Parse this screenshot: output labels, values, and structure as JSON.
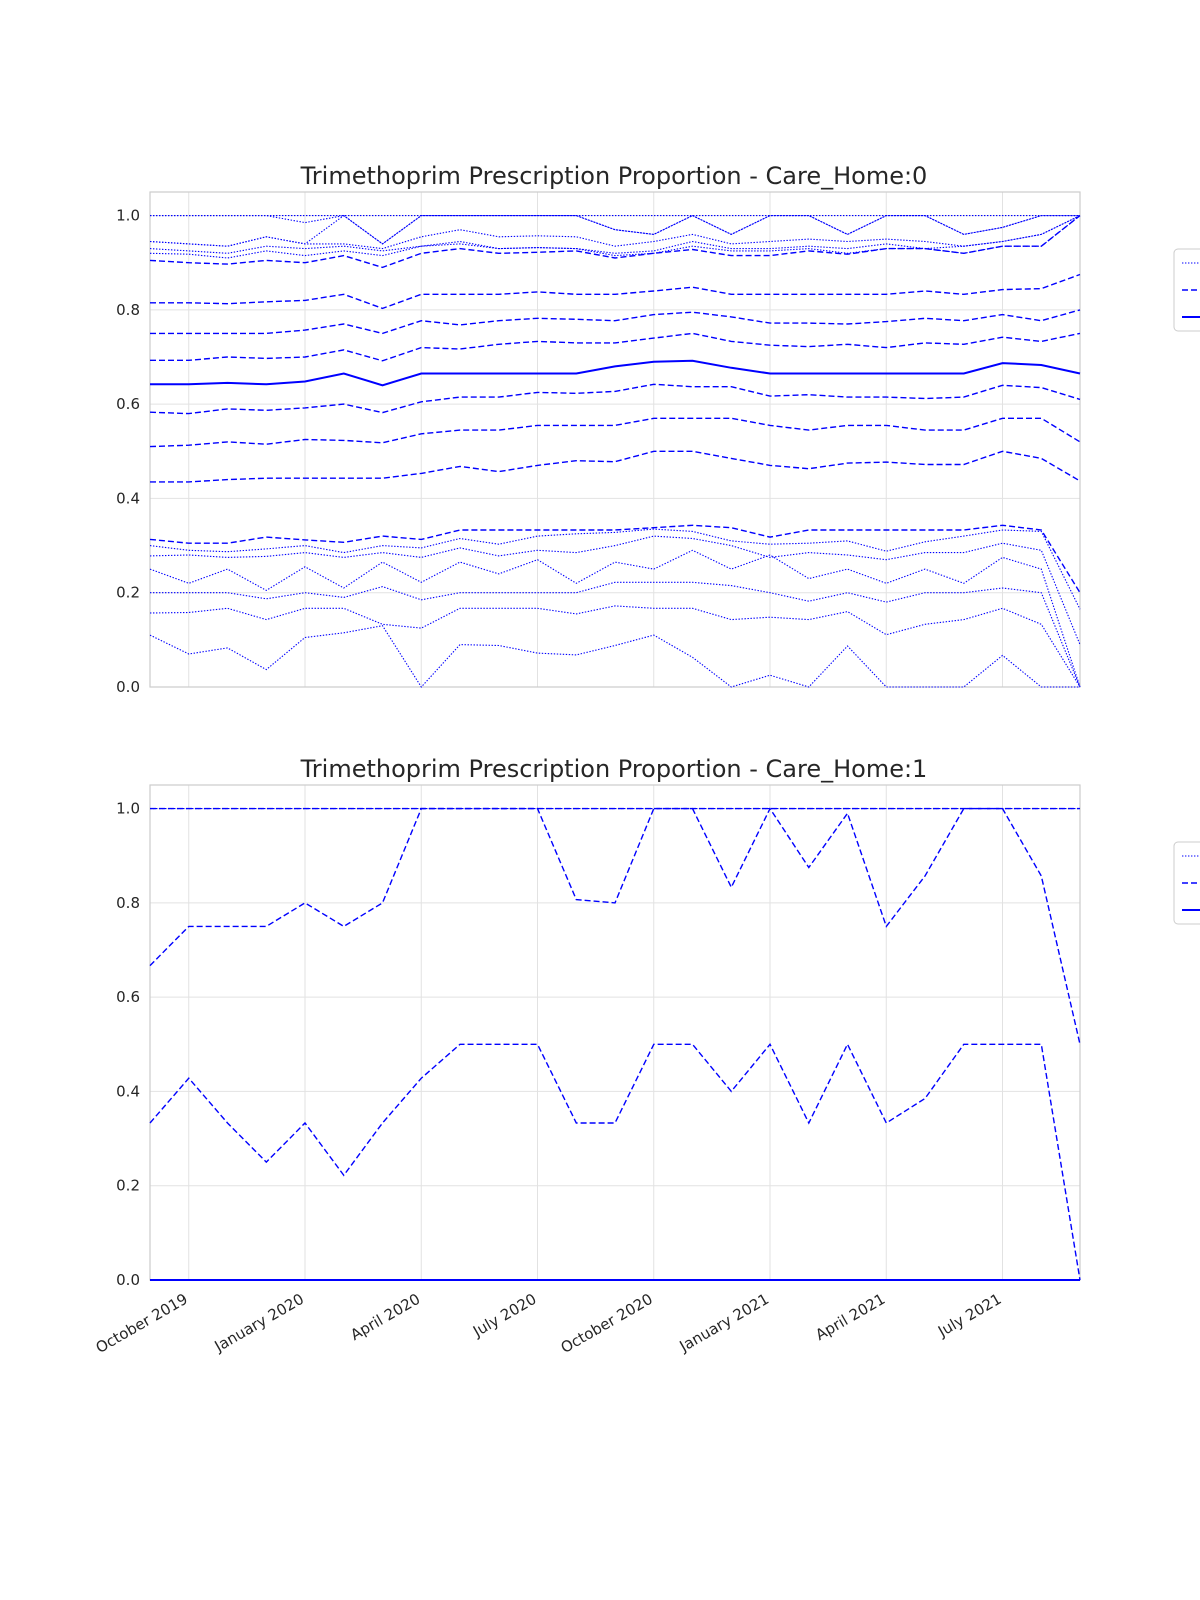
{
  "figure": {
    "x_ticks": [
      "October 2019",
      "January 2020",
      "April 2020",
      "July 2020",
      "October 2020",
      "January 2021",
      "April 2021",
      "July 2021"
    ],
    "line_color": "#0000ff"
  },
  "chart_data": [
    {
      "type": "line",
      "title": "Trimethoprim Prescription Proportion - Care_Home:0",
      "xlabel": "",
      "ylabel": "",
      "x": [
        "2019-09",
        "2019-10",
        "2019-11",
        "2019-12",
        "2020-01",
        "2020-02",
        "2020-03",
        "2020-04",
        "2020-05",
        "2020-06",
        "2020-07",
        "2020-08",
        "2020-09",
        "2020-10",
        "2020-11",
        "2020-12",
        "2021-01",
        "2021-02",
        "2021-03",
        "2021-04",
        "2021-05",
        "2021-06",
        "2021-07",
        "2021-08",
        "2021-09"
      ],
      "ylim": [
        0,
        1.05
      ],
      "yticks": [
        "0.0",
        "0.2",
        "0.4",
        "0.6",
        "0.8",
        "1.0"
      ],
      "show_xtick_labels": false,
      "grid": true,
      "legend": "right (entries cropped)",
      "series": [
        {
          "style": "dotted",
          "values": [
            1.0,
            1.0,
            1.0,
            1.0,
            1.0,
            1.0,
            1.0,
            1.0,
            1.0,
            1.0,
            1.0,
            1.0,
            1.0,
            1.0,
            1.0,
            1.0,
            1.0,
            1.0,
            1.0,
            1.0,
            1.0,
            1.0,
            1.0,
            1.0,
            1.0
          ]
        },
        {
          "style": "dotted",
          "values": [
            1.0,
            1.0,
            1.0,
            1.0,
            0.985,
            1.0,
            0.94,
            1.0,
            1.0,
            1.0,
            1.0,
            1.0,
            0.97,
            0.96,
            1.0,
            0.96,
            1.0,
            1.0,
            0.96,
            1.0,
            1.0,
            0.96,
            0.975,
            1.0,
            1.0
          ]
        },
        {
          "style": "dotted",
          "values": [
            0.945,
            0.94,
            0.935,
            0.955,
            0.94,
            1.0,
            0.94,
            1.0,
            1.0,
            1.0,
            1.0,
            1.0,
            0.97,
            0.96,
            1.0,
            0.96,
            1.0,
            1.0,
            0.96,
            1.0,
            1.0,
            0.96,
            0.975,
            1.0,
            1.0
          ]
        },
        {
          "style": "dotted",
          "values": [
            0.945,
            0.94,
            0.935,
            0.955,
            0.94,
            0.94,
            0.93,
            0.955,
            0.97,
            0.955,
            0.957,
            0.955,
            0.935,
            0.945,
            0.96,
            0.94,
            0.945,
            0.95,
            0.945,
            0.95,
            0.945,
            0.935,
            0.945,
            0.96,
            1.0
          ]
        },
        {
          "style": "dotted",
          "values": [
            0.93,
            0.925,
            0.92,
            0.935,
            0.93,
            0.935,
            0.925,
            0.935,
            0.945,
            0.93,
            0.932,
            0.93,
            0.92,
            0.925,
            0.945,
            0.93,
            0.93,
            0.935,
            0.93,
            0.94,
            0.93,
            0.935,
            0.945,
            0.96,
            1.0
          ]
        },
        {
          "style": "dotted",
          "values": [
            0.92,
            0.918,
            0.91,
            0.925,
            0.915,
            0.925,
            0.915,
            0.935,
            0.94,
            0.93,
            0.932,
            0.93,
            0.915,
            0.92,
            0.935,
            0.925,
            0.925,
            0.93,
            0.92,
            0.93,
            0.93,
            0.92,
            0.935,
            0.935,
            1.0
          ]
        },
        {
          "style": "dashed",
          "values": [
            0.905,
            0.9,
            0.897,
            0.905,
            0.9,
            0.915,
            0.89,
            0.92,
            0.93,
            0.92,
            0.922,
            0.925,
            0.91,
            0.92,
            0.928,
            0.915,
            0.915,
            0.925,
            0.918,
            0.93,
            0.93,
            0.92,
            0.935,
            0.935,
            1.0
          ]
        },
        {
          "style": "dashed",
          "values": [
            0.815,
            0.815,
            0.813,
            0.817,
            0.82,
            0.833,
            0.803,
            0.833,
            0.833,
            0.833,
            0.838,
            0.833,
            0.833,
            0.84,
            0.848,
            0.833,
            0.833,
            0.833,
            0.833,
            0.833,
            0.84,
            0.833,
            0.843,
            0.845,
            0.875
          ]
        },
        {
          "style": "dashed",
          "values": [
            0.75,
            0.75,
            0.75,
            0.75,
            0.757,
            0.77,
            0.75,
            0.777,
            0.768,
            0.777,
            0.782,
            0.78,
            0.777,
            0.79,
            0.795,
            0.785,
            0.772,
            0.772,
            0.77,
            0.775,
            0.782,
            0.777,
            0.79,
            0.777,
            0.8
          ]
        },
        {
          "style": "dashed",
          "values": [
            0.693,
            0.693,
            0.7,
            0.697,
            0.7,
            0.715,
            0.692,
            0.72,
            0.717,
            0.727,
            0.733,
            0.73,
            0.73,
            0.74,
            0.75,
            0.733,
            0.725,
            0.722,
            0.727,
            0.72,
            0.73,
            0.727,
            0.742,
            0.733,
            0.75
          ]
        },
        {
          "style": "solid",
          "values": [
            0.642,
            0.642,
            0.645,
            0.642,
            0.648,
            0.665,
            0.64,
            0.665,
            0.665,
            0.665,
            0.665,
            0.665,
            0.68,
            0.69,
            0.692,
            0.677,
            0.665,
            0.665,
            0.665,
            0.665,
            0.665,
            0.665,
            0.687,
            0.683,
            0.665
          ]
        },
        {
          "style": "dashed",
          "values": [
            0.583,
            0.58,
            0.59,
            0.587,
            0.592,
            0.6,
            0.582,
            0.605,
            0.615,
            0.615,
            0.625,
            0.623,
            0.627,
            0.642,
            0.637,
            0.637,
            0.617,
            0.62,
            0.615,
            0.615,
            0.612,
            0.615,
            0.64,
            0.635,
            0.61
          ]
        },
        {
          "style": "dashed",
          "values": [
            0.51,
            0.513,
            0.52,
            0.515,
            0.525,
            0.523,
            0.518,
            0.537,
            0.545,
            0.545,
            0.555,
            0.555,
            0.555,
            0.57,
            0.57,
            0.57,
            0.555,
            0.545,
            0.555,
            0.555,
            0.545,
            0.545,
            0.57,
            0.57,
            0.52
          ]
        },
        {
          "style": "dashed",
          "values": [
            0.435,
            0.435,
            0.44,
            0.443,
            0.443,
            0.443,
            0.443,
            0.453,
            0.468,
            0.457,
            0.47,
            0.48,
            0.478,
            0.5,
            0.5,
            0.485,
            0.47,
            0.463,
            0.475,
            0.477,
            0.472,
            0.472,
            0.5,
            0.485,
            0.437
          ]
        },
        {
          "style": "dashed",
          "values": [
            0.313,
            0.305,
            0.305,
            0.318,
            0.312,
            0.307,
            0.32,
            0.313,
            0.333,
            0.333,
            0.333,
            0.333,
            0.333,
            0.338,
            0.343,
            0.338,
            0.318,
            0.333,
            0.333,
            0.333,
            0.333,
            0.333,
            0.343,
            0.333,
            0.2
          ]
        },
        {
          "style": "dotted",
          "values": [
            0.3,
            0.29,
            0.287,
            0.293,
            0.3,
            0.285,
            0.3,
            0.295,
            0.315,
            0.303,
            0.32,
            0.325,
            0.328,
            0.335,
            0.33,
            0.31,
            0.303,
            0.305,
            0.31,
            0.288,
            0.308,
            0.32,
            0.333,
            0.33,
            0.165
          ]
        },
        {
          "style": "dotted",
          "values": [
            0.278,
            0.28,
            0.275,
            0.277,
            0.285,
            0.275,
            0.285,
            0.275,
            0.295,
            0.278,
            0.29,
            0.285,
            0.3,
            0.32,
            0.315,
            0.3,
            0.275,
            0.285,
            0.28,
            0.27,
            0.285,
            0.285,
            0.305,
            0.29,
            0.09
          ]
        },
        {
          "style": "dotted",
          "values": [
            0.25,
            0.22,
            0.25,
            0.205,
            0.255,
            0.21,
            0.265,
            0.222,
            0.265,
            0.24,
            0.27,
            0.22,
            0.265,
            0.25,
            0.29,
            0.25,
            0.28,
            0.23,
            0.25,
            0.22,
            0.25,
            0.22,
            0.275,
            0.25,
            0.0
          ]
        },
        {
          "style": "dotted",
          "values": [
            0.2,
            0.2,
            0.2,
            0.187,
            0.2,
            0.19,
            0.213,
            0.185,
            0.2,
            0.2,
            0.2,
            0.2,
            0.222,
            0.222,
            0.222,
            0.215,
            0.2,
            0.182,
            0.2,
            0.18,
            0.2,
            0.2,
            0.21,
            0.2,
            0.0
          ]
        },
        {
          "style": "dotted",
          "values": [
            0.157,
            0.158,
            0.167,
            0.143,
            0.167,
            0.167,
            0.133,
            0.125,
            0.167,
            0.167,
            0.167,
            0.155,
            0.172,
            0.167,
            0.167,
            0.143,
            0.148,
            0.143,
            0.16,
            0.111,
            0.133,
            0.143,
            0.167,
            0.133,
            0.0
          ]
        },
        {
          "style": "dotted",
          "values": [
            0.11,
            0.07,
            0.083,
            0.037,
            0.105,
            0.115,
            0.13,
            0.0,
            0.09,
            0.088,
            0.072,
            0.068,
            0.088,
            0.11,
            0.063,
            0.0,
            0.025,
            0.0,
            0.087,
            0.0,
            0.0,
            0.0,
            0.067,
            0.0,
            0.0
          ]
        }
      ]
    },
    {
      "type": "line",
      "title": "Trimethoprim Prescription Proportion - Care_Home:1",
      "xlabel": "",
      "ylabel": "",
      "x": [
        "2019-09",
        "2019-10",
        "2019-11",
        "2019-12",
        "2020-01",
        "2020-02",
        "2020-03",
        "2020-04",
        "2020-05",
        "2020-06",
        "2020-07",
        "2020-08",
        "2020-09",
        "2020-10",
        "2020-11",
        "2020-12",
        "2021-01",
        "2021-02",
        "2021-03",
        "2021-04",
        "2021-05",
        "2021-06",
        "2021-07",
        "2021-08",
        "2021-09"
      ],
      "ylim": [
        0,
        1.05
      ],
      "yticks": [
        "0.0",
        "0.2",
        "0.4",
        "0.6",
        "0.8",
        "1.0"
      ],
      "show_xtick_labels": true,
      "grid": true,
      "legend": "right (entries cropped)",
      "series": [
        {
          "style": "dotted",
          "values": [
            1.0,
            1.0,
            1.0,
            1.0,
            1.0,
            1.0,
            1.0,
            1.0,
            1.0,
            1.0,
            1.0,
            1.0,
            1.0,
            1.0,
            1.0,
            1.0,
            1.0,
            1.0,
            1.0,
            1.0,
            1.0,
            1.0,
            1.0,
            1.0,
            1.0
          ]
        },
        {
          "style": "dashed",
          "values": [
            1.0,
            1.0,
            1.0,
            1.0,
            1.0,
            1.0,
            1.0,
            1.0,
            1.0,
            1.0,
            1.0,
            1.0,
            1.0,
            1.0,
            1.0,
            1.0,
            1.0,
            1.0,
            1.0,
            1.0,
            1.0,
            1.0,
            1.0,
            1.0,
            1.0
          ]
        },
        {
          "style": "dashed",
          "values": [
            0.667,
            0.75,
            0.75,
            0.75,
            0.8,
            0.75,
            0.8,
            1.0,
            1.0,
            1.0,
            1.0,
            0.807,
            0.8,
            1.0,
            1.0,
            0.833,
            1.0,
            0.875,
            0.99,
            0.75,
            0.857,
            1.0,
            1.0,
            0.857,
            0.5
          ]
        },
        {
          "style": "dashed",
          "values": [
            0.333,
            0.428,
            0.333,
            0.25,
            0.333,
            0.222,
            0.333,
            0.428,
            0.5,
            0.5,
            0.5,
            0.333,
            0.333,
            0.5,
            0.5,
            0.4,
            0.5,
            0.333,
            0.5,
            0.333,
            0.385,
            0.5,
            0.5,
            0.5,
            0.0
          ]
        },
        {
          "style": "solid",
          "values": [
            0.0,
            0.0,
            0.0,
            0.0,
            0.0,
            0.0,
            0.0,
            0.0,
            0.0,
            0.0,
            0.0,
            0.0,
            0.0,
            0.0,
            0.0,
            0.0,
            0.0,
            0.0,
            0.0,
            0.0,
            0.0,
            0.0,
            0.0,
            0.0,
            0.0
          ]
        }
      ]
    }
  ]
}
